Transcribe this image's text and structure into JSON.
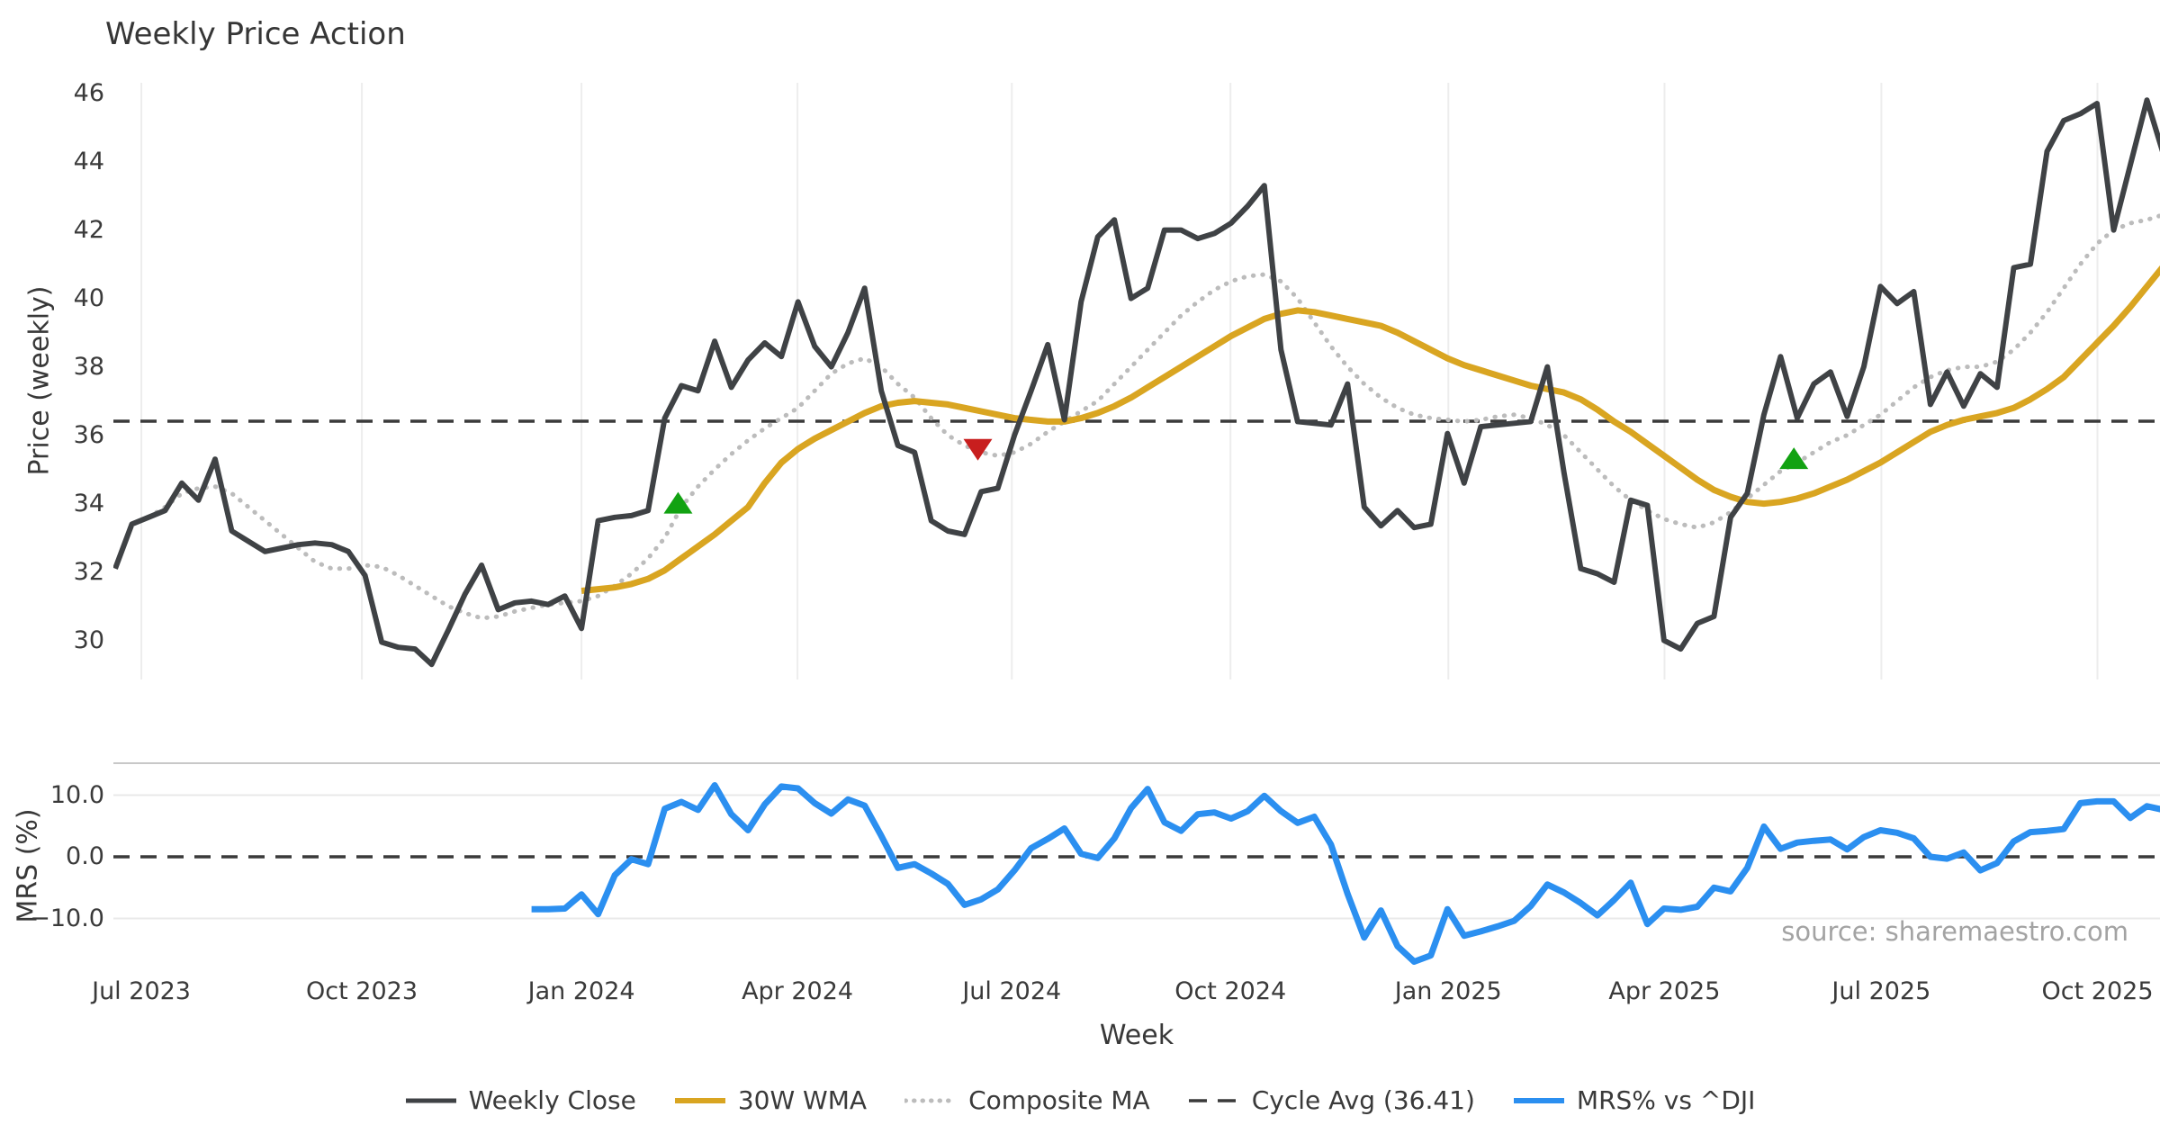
{
  "title": "Weekly Price Action",
  "source": "source: sharemaestro.com",
  "axes": {
    "price": {
      "label": "Price (weekly)",
      "ticks": [
        46,
        44,
        42,
        40,
        38,
        36,
        34,
        32,
        30
      ]
    },
    "mrs": {
      "label": "MRS (%)",
      "tick_labels": [
        "10.0",
        "0.0",
        "−10.0"
      ],
      "tick_values": [
        10,
        0,
        -10
      ]
    },
    "x": {
      "label": "Week",
      "ticks": [
        {
          "label": "Jul 2023",
          "week": 1.57
        },
        {
          "label": "Oct 2023",
          "week": 14.81
        },
        {
          "label": "Jan 2024",
          "week": 28.0
        },
        {
          "label": "Apr 2024",
          "week": 40.97
        },
        {
          "label": "Jul 2024",
          "week": 53.84
        },
        {
          "label": "Oct 2024",
          "week": 66.97
        },
        {
          "label": "Jan 2025",
          "week": 80.05
        },
        {
          "label": "Apr 2025",
          "week": 93.03
        },
        {
          "label": "Jul 2025",
          "week": 106.05
        },
        {
          "label": "Oct 2025",
          "week": 119.03
        }
      ]
    }
  },
  "legend": [
    {
      "label": "Weekly Close",
      "style": "solid",
      "color": "#3f4245",
      "thickness": 5,
      "dash": ""
    },
    {
      "label": "30W WMA",
      "style": "solid",
      "color": "#d9a521",
      "thickness": 6,
      "dash": ""
    },
    {
      "label": "Composite MA",
      "style": "dotted",
      "color": "#bcbcbc",
      "thickness": 5,
      "dash": "0.5 9"
    },
    {
      "label": "Cycle Avg (36.41)",
      "style": "dashed",
      "color": "#3a3a3a",
      "thickness": 3.6,
      "dash": "20 12"
    },
    {
      "label": "MRS% vs ^DJI",
      "style": "solid",
      "color": "#2b8ff0",
      "thickness": 6,
      "dash": ""
    }
  ],
  "colors": {
    "close": "#3f4245",
    "wma": "#d9a521",
    "composite": "#bcbcbc",
    "cycle_avg": "#3a3a3a",
    "mrs": "#2b8ff0",
    "marker_up": "#12a212",
    "marker_down": "#c81e1e",
    "grid": "#ededed",
    "mrs_grid": "#e9e9e9",
    "mrs_spine": "#c8c8c8",
    "text": "#3a3a3a",
    "source_text": "#a3a3a3"
  },
  "chart_data": {
    "type": "line",
    "x_unit": "week_index",
    "panels": [
      {
        "name": "price",
        "ylabel": "Price (weekly)",
        "ylim": [
          28.86,
          47.28
        ],
        "grid": "vertical",
        "series": [
          {
            "name": "Weekly Close",
            "start_week": 0,
            "values": [
              32.1,
              33.4,
              33.6,
              33.8,
              34.6,
              34.1,
              35.3,
              33.2,
              32.9,
              32.6,
              32.7,
              32.8,
              32.85,
              32.8,
              32.6,
              31.9,
              29.95,
              29.8,
              29.75,
              29.3,
              30.3,
              31.35,
              32.2,
              30.9,
              31.1,
              31.15,
              31.05,
              31.3,
              30.35,
              33.5,
              33.6,
              33.65,
              33.8,
              36.5,
              37.45,
              37.3,
              38.75,
              37.4,
              38.2,
              38.7,
              38.3,
              39.9,
              38.6,
              38.0,
              39.0,
              40.3,
              37.3,
              35.7,
              35.5,
              33.5,
              33.2,
              33.1,
              34.35,
              34.45,
              36.0,
              37.3,
              38.65,
              36.45,
              39.9,
              41.8,
              42.3,
              40.0,
              40.3,
              42.0,
              42.0,
              41.75,
              41.9,
              42.2,
              42.7,
              43.3,
              38.5,
              36.4,
              36.35,
              36.3,
              37.5,
              33.9,
              33.35,
              33.8,
              33.3,
              33.4,
              36.05,
              34.6,
              36.25,
              36.3,
              36.35,
              36.4,
              38.0,
              34.9,
              32.1,
              31.95,
              31.7,
              34.1,
              33.95,
              30.0,
              29.75,
              30.5,
              30.7,
              33.6,
              34.3,
              36.6,
              38.3,
              36.5,
              37.5,
              37.85,
              36.55,
              38.0,
              40.35,
              39.85,
              40.2,
              36.9,
              37.85,
              36.85,
              37.8,
              37.4,
              40.9,
              41.0,
              44.3,
              45.2,
              45.4,
              45.7,
              42.0,
              43.9,
              45.8,
              44.2
            ]
          },
          {
            "name": "Composite MA",
            "start_week": 2,
            "values": [
              33.6,
              33.9,
              34.3,
              34.45,
              34.5,
              34.3,
              33.9,
              33.5,
              33.1,
              32.7,
              32.3,
              32.1,
              32.1,
              32.2,
              32.15,
              31.9,
              31.6,
              31.3,
              31.0,
              30.8,
              30.65,
              30.7,
              30.85,
              30.95,
              31.05,
              31.1,
              31.15,
              31.3,
              31.6,
              31.95,
              32.4,
              33.0,
              33.9,
              34.5,
              35.0,
              35.45,
              35.85,
              36.2,
              36.5,
              36.8,
              37.3,
              37.8,
              38.1,
              38.25,
              38.0,
              37.5,
              37.1,
              36.5,
              36.0,
              35.7,
              35.5,
              35.4,
              35.5,
              35.75,
              36.1,
              36.4,
              36.7,
              37.0,
              37.5,
              38.0,
              38.5,
              39.0,
              39.5,
              39.9,
              40.25,
              40.5,
              40.65,
              40.7,
              40.5,
              40.0,
              39.3,
              38.6,
              38.0,
              37.5,
              37.1,
              36.8,
              36.6,
              36.5,
              36.45,
              36.4,
              36.45,
              36.55,
              36.6,
              36.5,
              36.3,
              36.0,
              35.5,
              35.0,
              34.5,
              34.1,
              33.8,
              33.55,
              33.4,
              33.3,
              33.45,
              33.75,
              34.15,
              34.55,
              34.95,
              35.2,
              35.5,
              35.8,
              36.0,
              36.3,
              36.6,
              37.0,
              37.4,
              37.7,
              37.9,
              38.0,
              38.0,
              38.15,
              38.5,
              39.0,
              39.6,
              40.3,
              41.0,
              41.6,
              42.0,
              42.2,
              42.3,
              42.45
            ]
          },
          {
            "name": "30W WMA",
            "start_week": 28,
            "values": [
              31.45,
              31.5,
              31.55,
              31.65,
              31.8,
              32.05,
              32.4,
              32.75,
              33.1,
              33.5,
              33.9,
              34.6,
              35.2,
              35.6,
              35.9,
              36.15,
              36.4,
              36.65,
              36.85,
              36.95,
              37.0,
              36.95,
              36.9,
              36.8,
              36.7,
              36.6,
              36.5,
              36.45,
              36.4,
              36.4,
              36.5,
              36.65,
              36.85,
              37.1,
              37.4,
              37.7,
              38.0,
              38.3,
              38.6,
              38.9,
              39.15,
              39.4,
              39.55,
              39.65,
              39.6,
              39.5,
              39.4,
              39.3,
              39.2,
              39.0,
              38.75,
              38.5,
              38.25,
              38.05,
              37.9,
              37.75,
              37.6,
              37.45,
              37.35,
              37.25,
              37.05,
              36.75,
              36.4,
              36.1,
              35.75,
              35.4,
              35.05,
              34.7,
              34.4,
              34.2,
              34.05,
              34.0,
              34.05,
              34.15,
              34.3,
              34.5,
              34.7,
              34.95,
              35.2,
              35.5,
              35.8,
              36.1,
              36.3,
              36.45,
              36.55,
              36.65,
              36.8,
              37.05,
              37.35,
              37.7,
              38.2,
              38.7,
              39.2,
              39.75,
              40.35,
              40.95
            ]
          },
          {
            "name": "Cycle Avg",
            "type": "hline",
            "value": 36.41
          }
        ],
        "markers": [
          {
            "shape": "triangle-up",
            "color": "#12a212",
            "week": 33.8,
            "price": 34.0
          },
          {
            "shape": "triangle-down",
            "color": "#c81e1e",
            "week": 51.8,
            "price": 35.6
          },
          {
            "shape": "triangle-up",
            "color": "#12a212",
            "week": 100.8,
            "price": 35.3
          }
        ]
      },
      {
        "name": "mrs",
        "ylabel": "MRS (%)",
        "ylim": [
          -18.4,
          15.2
        ],
        "grid": "horizontal",
        "series": [
          {
            "name": "MRS% vs ^DJI",
            "start_week": 25,
            "values": [
              -8.5,
              -8.5,
              -8.4,
              -6.1,
              -9.3,
              -3.0,
              -0.4,
              -1.2,
              7.8,
              8.9,
              7.6,
              11.6,
              6.9,
              4.3,
              8.5,
              11.4,
              11.1,
              8.7,
              7.0,
              9.3,
              8.3,
              3.4,
              -1.8,
              -1.2,
              -2.7,
              -4.4,
              -7.8,
              -6.9,
              -5.3,
              -2.2,
              1.4,
              2.9,
              4.6,
              0.5,
              -0.2,
              3.0,
              7.9,
              11.0,
              5.6,
              4.2,
              6.9,
              7.2,
              6.2,
              7.4,
              9.9,
              7.4,
              5.5,
              6.5,
              2.0,
              -6.0,
              -13.1,
              -8.7,
              -14.5,
              -17.0,
              -16.0,
              -8.5,
              -12.8,
              -12.1,
              -11.3,
              -10.4,
              -8.0,
              -4.5,
              -5.8,
              -7.5,
              -9.5,
              -7.0,
              -4.2,
              -10.9,
              -8.4,
              -8.6,
              -8.1,
              -5.0,
              -5.6,
              -1.8,
              4.9,
              1.3,
              2.3,
              2.6,
              2.8,
              1.2,
              3.2,
              4.3,
              3.9,
              3.0,
              0.0,
              -0.3,
              0.7,
              -2.2,
              -1.0,
              2.5,
              4.0,
              4.2,
              4.5,
              8.7,
              9.0,
              9.0,
              6.3,
              8.2,
              7.6,
              6.9
            ]
          },
          {
            "name": "Zero line",
            "type": "hline",
            "value": 0
          }
        ]
      }
    ]
  }
}
